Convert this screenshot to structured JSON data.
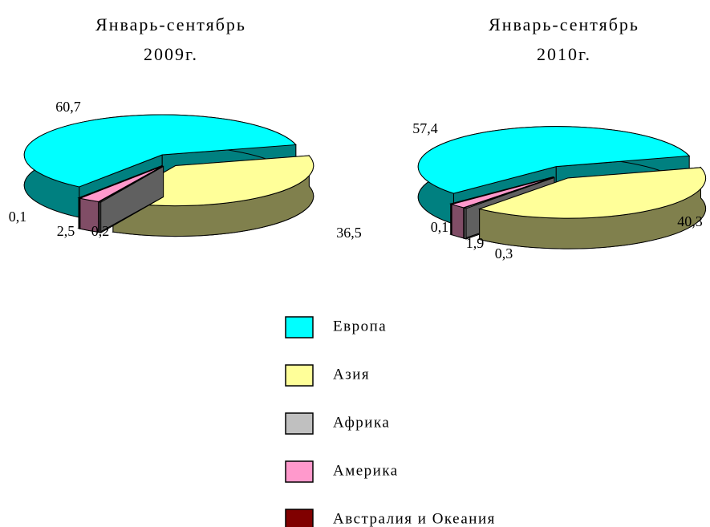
{
  "chart_data": [
    {
      "type": "pie",
      "title": "Январь-сентябрь 2009г.",
      "categories": [
        "Европа",
        "Азия",
        "Африка",
        "Америка",
        "Австралия и Океания"
      ],
      "colors": [
        "#00ffff",
        "#ffff99",
        "#c0c0c0",
        "#ff99cc",
        "#800000"
      ],
      "values": [
        60.7,
        36.5,
        0.2,
        2.5,
        0.1
      ],
      "value_labels": [
        "60,7",
        "36,5",
        "0,2",
        "2,5",
        "0,1"
      ]
    },
    {
      "type": "pie",
      "title": "Январь-сентябрь 2010г.",
      "values": [
        57.4,
        40.3,
        0.3,
        1.9,
        0.1
      ],
      "value_labels": [
        "57,4",
        "40,3",
        "0,3",
        "1,9",
        "0,1"
      ]
    }
  ]
}
